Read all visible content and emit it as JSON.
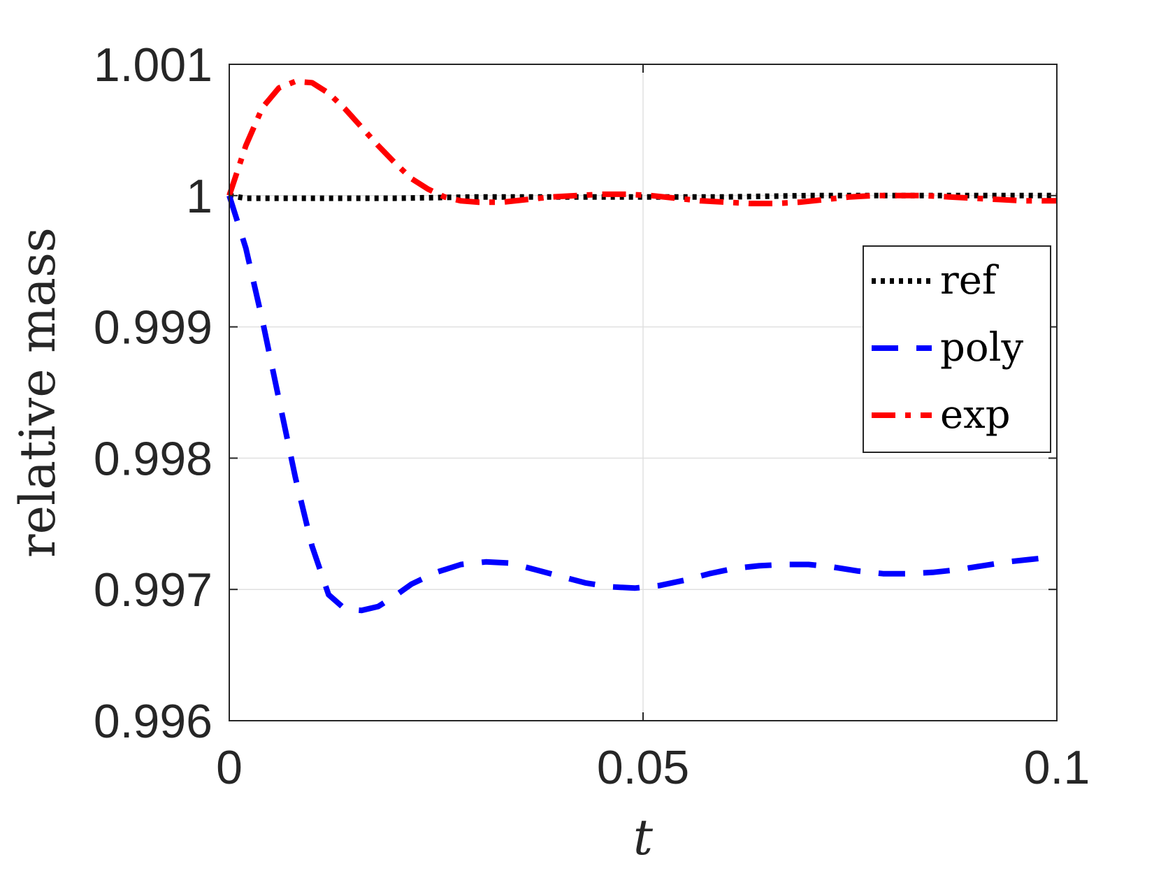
{
  "chart_data": {
    "type": "line",
    "xlabel": "t",
    "ylabel": "relative mass",
    "xlim": [
      0,
      0.1
    ],
    "ylim": [
      0.996,
      1.001
    ],
    "xticks": [
      0,
      0.05,
      0.1
    ],
    "xtick_labels": [
      "0",
      "0.05",
      "0.1"
    ],
    "yticks": [
      0.996,
      0.997,
      0.998,
      0.999,
      1,
      1.001
    ],
    "ytick_labels": [
      "0.996",
      "0.997",
      "0.998",
      "0.999",
      "1",
      "1.001"
    ],
    "grid": true,
    "legend_position": "right",
    "series": [
      {
        "name": "ref",
        "color": "#000000",
        "style": "dotted",
        "x": [
          0,
          0.002,
          0.01,
          0.02,
          0.03,
          0.04,
          0.05,
          0.06,
          0.07,
          0.08,
          0.09,
          0.1
        ],
        "y": [
          1.0,
          0.99998,
          0.99998,
          0.99998,
          0.99999,
          0.99999,
          0.99999,
          0.99999,
          1.0,
          1.0,
          1.0,
          1.0
        ]
      },
      {
        "name": "poly",
        "color": "#0000ff",
        "style": "dashed",
        "x": [
          0,
          0.002,
          0.004,
          0.006,
          0.008,
          0.01,
          0.012,
          0.014,
          0.016,
          0.018,
          0.02,
          0.022,
          0.025,
          0.028,
          0.031,
          0.034,
          0.037,
          0.04,
          0.043,
          0.046,
          0.049,
          0.052,
          0.055,
          0.058,
          0.061,
          0.064,
          0.067,
          0.07,
          0.073,
          0.076,
          0.079,
          0.082,
          0.085,
          0.088,
          0.091,
          0.094,
          0.097,
          0.1
        ],
        "y": [
          1.0,
          0.9996,
          0.99905,
          0.99845,
          0.99785,
          0.99733,
          0.99696,
          0.99685,
          0.99684,
          0.99687,
          0.99695,
          0.99704,
          0.99713,
          0.99719,
          0.99721,
          0.9972,
          0.99715,
          0.9971,
          0.99705,
          0.99702,
          0.99701,
          0.99703,
          0.99707,
          0.99712,
          0.99716,
          0.99718,
          0.99719,
          0.99719,
          0.99717,
          0.99714,
          0.99712,
          0.99712,
          0.99713,
          0.99715,
          0.99718,
          0.99721,
          0.99723,
          0.99725
        ]
      },
      {
        "name": "exp",
        "color": "#ff0000",
        "style": "dashdot",
        "x": [
          0,
          0.002,
          0.004,
          0.006,
          0.008,
          0.01,
          0.012,
          0.014,
          0.016,
          0.018,
          0.02,
          0.022,
          0.024,
          0.026,
          0.028,
          0.03,
          0.033,
          0.036,
          0.039,
          0.042,
          0.045,
          0.048,
          0.051,
          0.054,
          0.057,
          0.06,
          0.063,
          0.066,
          0.069,
          0.072,
          0.075,
          0.078,
          0.081,
          0.084,
          0.087,
          0.09,
          0.093,
          0.096,
          0.1
        ],
        "y": [
          1.0,
          1.00038,
          1.00067,
          1.00082,
          1.00087,
          1.00086,
          1.00078,
          1.00066,
          1.00052,
          1.00038,
          1.00025,
          1.00013,
          1.00005,
          0.99999,
          0.99996,
          0.99995,
          0.99995,
          0.99997,
          0.99999,
          1.0,
          1.00001,
          1.00001,
          1.0,
          0.99998,
          0.99996,
          0.99995,
          0.99994,
          0.99994,
          0.99995,
          0.99997,
          0.99999,
          1.0,
          1.0,
          1.0,
          0.99999,
          0.99998,
          0.99997,
          0.99996,
          0.99996
        ]
      }
    ]
  }
}
